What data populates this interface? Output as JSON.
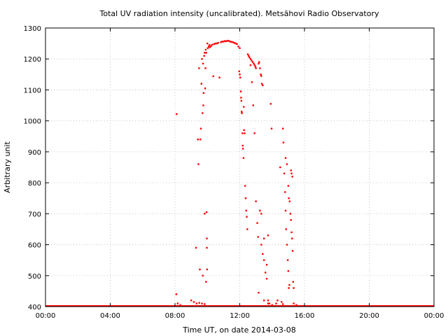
{
  "chart_data": {
    "type": "scatter",
    "title": "Total UV radiation intensity (uncalibrated). Metsähovi Radio Observatory",
    "xlabel": "Time UT, on date 2014-03-08",
    "ylabel": "Arbitrary unit",
    "xlim": [
      "00:00",
      "24:00"
    ],
    "ylim": [
      400,
      1300
    ],
    "x_ticks": [
      "00:00",
      "04:00",
      "08:00",
      "12:00",
      "16:00",
      "20:00",
      "00:00"
    ],
    "y_ticks": [
      "400",
      "500",
      "600",
      "700",
      "800",
      "900",
      "1000",
      "1100",
      "1200",
      "1300"
    ],
    "grid": true,
    "marker_color": "#ff0000",
    "baseline": {
      "y": 400,
      "x_range": [
        "00:00",
        "24:00"
      ]
    },
    "series": [
      {
        "points": [
          [
            "08:06",
            1022
          ],
          [
            "08:05",
            440
          ],
          [
            "09:18",
            590
          ],
          [
            "09:25",
            940
          ],
          [
            "09:27",
            860
          ],
          [
            "09:29",
            1170
          ],
          [
            "09:32",
            520
          ],
          [
            "09:34",
            940
          ],
          [
            "09:36",
            975
          ],
          [
            "09:38",
            1120
          ],
          [
            "09:40",
            1200
          ],
          [
            "09:42",
            1025
          ],
          [
            "09:43",
            500
          ],
          [
            "09:44",
            1185
          ],
          [
            "09:45",
            1050
          ],
          [
            "09:46",
            1090
          ],
          [
            "09:48",
            1210
          ],
          [
            "09:50",
            1220
          ],
          [
            "09:50",
            700
          ],
          [
            "09:52",
            1105
          ],
          [
            "09:53",
            1170
          ],
          [
            "09:54",
            1230
          ],
          [
            "09:55",
            480
          ],
          [
            "09:56",
            1220
          ],
          [
            "09:57",
            705
          ],
          [
            "09:58",
            620
          ],
          [
            "09:58",
            590
          ],
          [
            "09:59",
            520
          ],
          [
            "10:00",
            1250
          ],
          [
            "10:02",
            1235
          ],
          [
            "10:05",
            1240
          ],
          [
            "10:08",
            1245
          ],
          [
            "10:10",
            1238
          ],
          [
            "10:14",
            1242
          ],
          [
            "10:18",
            1246
          ],
          [
            "10:22",
            1144
          ],
          [
            "10:25",
            1248
          ],
          [
            "10:30",
            1250
          ],
          [
            "10:35",
            1250
          ],
          [
            "10:40",
            1252
          ],
          [
            "10:45",
            1140
          ],
          [
            "10:50",
            1254
          ],
          [
            "10:55",
            1256
          ],
          [
            "11:00",
            1256
          ],
          [
            "11:05",
            1258
          ],
          [
            "11:10",
            1257
          ],
          [
            "11:15",
            1259
          ],
          [
            "11:20",
            1258
          ],
          [
            "11:25",
            1256
          ],
          [
            "11:30",
            1255
          ],
          [
            "11:35",
            1254
          ],
          [
            "11:40",
            1252
          ],
          [
            "11:45",
            1250
          ],
          [
            "11:50",
            1248
          ],
          [
            "11:55",
            1240
          ],
          [
            "12:00",
            1235
          ],
          [
            "11:58",
            1160
          ],
          [
            "12:00",
            1150
          ],
          [
            "12:02",
            1140
          ],
          [
            "12:04",
            1095
          ],
          [
            "12:05",
            1075
          ],
          [
            "12:06",
            1065
          ],
          [
            "12:07",
            1030
          ],
          [
            "12:08",
            1025
          ],
          [
            "12:10",
            960
          ],
          [
            "12:11",
            920
          ],
          [
            "12:12",
            910
          ],
          [
            "12:14",
            880
          ],
          [
            "12:15",
            1045
          ],
          [
            "12:16",
            970
          ],
          [
            "12:18",
            960
          ],
          [
            "12:20",
            790
          ],
          [
            "12:22",
            750
          ],
          [
            "12:24",
            710
          ],
          [
            "12:26",
            690
          ],
          [
            "12:28",
            650
          ],
          [
            "12:30",
            1215
          ],
          [
            "12:33",
            1210
          ],
          [
            "12:36",
            1205
          ],
          [
            "12:40",
            1200
          ],
          [
            "12:44",
            1195
          ],
          [
            "12:48",
            1190
          ],
          [
            "12:52",
            1185
          ],
          [
            "12:55",
            1180
          ],
          [
            "12:58",
            1175
          ],
          [
            "13:00",
            1170
          ],
          [
            "12:40",
            1180
          ],
          [
            "12:45",
            1125
          ],
          [
            "12:50",
            1050
          ],
          [
            "12:55",
            960
          ],
          [
            "13:00",
            740
          ],
          [
            "13:05",
            670
          ],
          [
            "13:08",
            625
          ],
          [
            "13:10",
            1185
          ],
          [
            "13:12",
            1190
          ],
          [
            "13:15",
            1170
          ],
          [
            "13:18",
            1150
          ],
          [
            "13:20",
            1145
          ],
          [
            "13:22",
            1120
          ],
          [
            "13:25",
            1115
          ],
          [
            "13:10",
            445
          ],
          [
            "13:20",
            600
          ],
          [
            "13:25",
            570
          ],
          [
            "13:30",
            550
          ],
          [
            "13:35",
            510
          ],
          [
            "13:40",
            490
          ],
          [
            "13:45",
            420
          ],
          [
            "13:50",
            410
          ],
          [
            "13:15",
            710
          ],
          [
            "13:20",
            700
          ],
          [
            "13:30",
            620
          ],
          [
            "13:40",
            535
          ],
          [
            "13:45",
            630
          ],
          [
            "13:55",
            1055
          ],
          [
            "13:58",
            975
          ],
          [
            "14:30",
            850
          ],
          [
            "14:40",
            975
          ],
          [
            "14:42",
            930
          ],
          [
            "14:45",
            830
          ],
          [
            "14:48",
            770
          ],
          [
            "14:50",
            710
          ],
          [
            "14:52",
            650
          ],
          [
            "14:55",
            600
          ],
          [
            "14:58",
            550
          ],
          [
            "15:00",
            515
          ],
          [
            "15:02",
            460
          ],
          [
            "15:04",
            470
          ],
          [
            "14:50",
            880
          ],
          [
            "14:55",
            860
          ],
          [
            "15:00",
            790
          ],
          [
            "15:02",
            750
          ],
          [
            "15:05",
            740
          ],
          [
            "15:08",
            700
          ],
          [
            "15:10",
            680
          ],
          [
            "15:12",
            640
          ],
          [
            "15:14",
            620
          ],
          [
            "15:16",
            580
          ],
          [
            "15:18",
            480
          ],
          [
            "15:20",
            460
          ],
          [
            "15:10",
            840
          ],
          [
            "15:12",
            830
          ],
          [
            "15:15",
            820
          ],
          [
            "09:00",
            420
          ],
          [
            "09:10",
            415
          ],
          [
            "09:20",
            410
          ],
          [
            "09:30",
            412
          ],
          [
            "09:40",
            410
          ],
          [
            "09:50",
            408
          ],
          [
            "08:10",
            410
          ],
          [
            "08:20",
            405
          ],
          [
            "08:30",
            402
          ],
          [
            "13:30",
            420
          ],
          [
            "13:45",
            410
          ],
          [
            "14:00",
            405
          ],
          [
            "14:15",
            410
          ],
          [
            "14:20",
            420
          ],
          [
            "14:35",
            415
          ],
          [
            "14:40",
            408
          ],
          [
            "15:20",
            410
          ],
          [
            "15:30",
            405
          ],
          [
            "15:40",
            402
          ]
        ]
      }
    ]
  }
}
